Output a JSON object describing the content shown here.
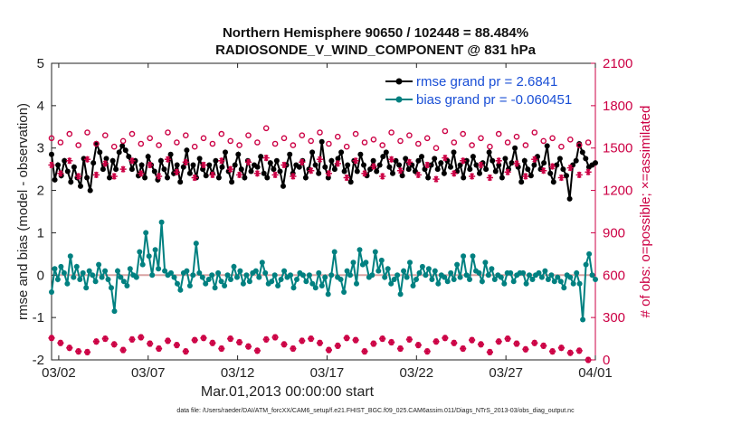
{
  "chart_data": {
    "type": "line",
    "title": "Northern Hemisphere 90650 / 102448 = 88.484%",
    "subtitle": "RADIOSONDE_V_WIND_COMPONENT @ 831 hPa",
    "xlabel": "Mar.01,2013 00:00:00 start",
    "ylabel": "rmse and bias (model - observation)",
    "y2label": "# of obs: o=possible; ×=assimilated",
    "x_ticks": [
      "03/02",
      "03/07",
      "03/12",
      "03/17",
      "03/22",
      "03/27",
      "04/01"
    ],
    "x_tick_days": [
      1,
      6,
      11,
      16,
      21,
      26,
      31
    ],
    "xlim": [
      0.6,
      31
    ],
    "ylim": [
      -2,
      5
    ],
    "y_ticks": [
      "-2",
      "-1",
      "0",
      "1",
      "2",
      "3",
      "4",
      "5"
    ],
    "y2lim": [
      0,
      2100
    ],
    "y2_ticks": [
      "0",
      "300",
      "600",
      "900",
      "1200",
      "1500",
      "1800",
      "2100"
    ],
    "zero_line": 0,
    "footer": "data file: /Users/raeder/DAI/ATM_forcXX/CAM6_setup/f.e21.FHIST_BGC.f09_025.CAM6assim.011/Diags_NTrS_2013-03/obs_diag_output.nc",
    "series": [
      {
        "name": "rmse grand pr = 2.6841",
        "color": "#000000",
        "axis": "left",
        "values": [
          2.85,
          2.25,
          2.6,
          2.35,
          2.7,
          2.45,
          2.2,
          2.55,
          2.3,
          2.1,
          2.75,
          2.3,
          2.0,
          2.65,
          3.1,
          2.9,
          2.5,
          2.75,
          2.3,
          2.7,
          2.5,
          2.9,
          3.05,
          2.95,
          2.8,
          2.5,
          2.7,
          2.35,
          2.6,
          2.3,
          2.8,
          2.6,
          2.45,
          2.25,
          2.7,
          2.5,
          2.3,
          2.85,
          2.4,
          2.6,
          2.2,
          2.55,
          2.95,
          2.4,
          2.6,
          2.3,
          2.75,
          2.5,
          2.35,
          2.6,
          2.4,
          2.7,
          2.3,
          2.55,
          2.9,
          2.45,
          2.2,
          2.6,
          2.85,
          2.5,
          2.3,
          2.7,
          2.45,
          2.6,
          2.55,
          2.8,
          2.4,
          2.3,
          2.65,
          2.5,
          2.7,
          2.45,
          2.1,
          2.6,
          2.85,
          2.4,
          2.6,
          2.55,
          2.7,
          2.3,
          2.5,
          2.9,
          2.6,
          2.4,
          3.15,
          2.55,
          2.3,
          2.7,
          2.5,
          2.75,
          2.9,
          2.45,
          2.6,
          2.2,
          2.7,
          2.45,
          2.85,
          2.6,
          2.35,
          2.5,
          2.7,
          2.45,
          2.6,
          2.8,
          2.9,
          2.55,
          2.4,
          2.7,
          2.6,
          2.35,
          2.75,
          2.5,
          2.6,
          2.45,
          2.7,
          2.8,
          2.5,
          2.3,
          2.6,
          2.75,
          2.5,
          2.65,
          2.4,
          2.7,
          2.55,
          2.9,
          2.45,
          2.6,
          2.3,
          2.7,
          2.5,
          2.8,
          2.6,
          2.4,
          2.65,
          2.5,
          2.9,
          2.7,
          2.45,
          2.6,
          2.3,
          2.75,
          2.5,
          2.65,
          3.0,
          2.55,
          2.2,
          2.7,
          2.5,
          2.35,
          2.6,
          2.8,
          2.5,
          2.65,
          3.05,
          2.4,
          2.2,
          2.6,
          2.75,
          2.5,
          2.35,
          1.8,
          2.6,
          2.7,
          3.1,
          2.9,
          2.75,
          2.55,
          2.6,
          2.65
        ]
      },
      {
        "name": "bias grand pr = -0.060451",
        "color": "#008080",
        "axis": "left",
        "values": [
          -0.4,
          0.15,
          -0.1,
          0.2,
          0.05,
          -0.2,
          0.45,
          -0.05,
          0.2,
          -0.1,
          0.05,
          -0.3,
          0.1,
          0.0,
          -0.15,
          0.25,
          -0.05,
          0.1,
          -0.1,
          -0.3,
          -0.85,
          0.1,
          -0.05,
          -0.15,
          -0.25,
          0.15,
          0.0,
          -0.05,
          0.55,
          0.25,
          1.0,
          0.45,
          0.0,
          0.6,
          0.15,
          1.25,
          0.1,
          0.0,
          0.05,
          -0.05,
          -0.2,
          -0.35,
          0.05,
          0.1,
          -0.25,
          0.0,
          0.75,
          0.05,
          -0.05,
          -0.2,
          -0.1,
          0.0,
          -0.3,
          0.05,
          -0.15,
          -0.25,
          0.0,
          -0.1,
          0.2,
          -0.05,
          0.1,
          -0.2,
          0.0,
          -0.15,
          0.05,
          0.1,
          -0.05,
          0.3,
          0.05,
          -0.2,
          -0.15,
          0.0,
          -0.25,
          -0.1,
          0.1,
          -0.05,
          0.0,
          -0.3,
          -0.1,
          0.05,
          0.0,
          -0.15,
          0.0,
          -0.2,
          -0.3,
          0.05,
          -0.25,
          -0.05,
          -0.45,
          0.0,
          0.55,
          -0.05,
          -0.1,
          -0.4,
          0.1,
          0.0,
          0.3,
          -0.2,
          0.6,
          0.25,
          0.3,
          -0.05,
          0.0,
          0.55,
          0.1,
          0.35,
          -0.05,
          0.15,
          -0.2,
          -0.1,
          0.0,
          -0.45,
          0.1,
          -0.05,
          0.3,
          -0.25,
          -0.1,
          0.05,
          0.2,
          0.0,
          0.15,
          -0.1,
          0.1,
          -0.2,
          0.0,
          -0.05,
          -0.15,
          0.05,
          -0.1,
          0.25,
          -0.05,
          0.45,
          0.0,
          -0.1,
          0.45,
          0.1,
          0.05,
          -0.15,
          0.3,
          0.0,
          0.15,
          -0.1,
          0.0,
          -0.05,
          -0.2,
          0.05,
          0.05,
          -0.15,
          0.0,
          0.05,
          0.05,
          -0.2,
          0.0,
          -0.1,
          0.0,
          0.05,
          -0.05,
          0.1,
          -0.1,
          0.0,
          -0.15,
          -0.05,
          -0.15,
          -0.3,
          0.0,
          -0.05,
          -0.2,
          0.05,
          -0.2,
          -1.05,
          0.25,
          0.5,
          0.0,
          -0.1
        ]
      },
      {
        "name": "possible",
        "color": "#cc0044",
        "axis": "right",
        "marker": "o",
        "times": [
          0.6,
          1.1,
          1.6,
          2.1,
          2.6,
          3.1,
          3.6,
          4.1,
          4.6,
          5.1,
          5.6,
          6.1,
          6.6,
          7.1,
          7.6,
          8.1,
          8.6,
          9.1,
          9.6,
          10.1,
          10.6,
          11.1,
          11.6,
          12.1,
          12.6,
          13.1,
          13.6,
          14.1,
          14.6,
          15.1,
          15.6,
          16.1,
          16.6,
          17.1,
          17.6,
          18.1,
          18.6,
          19.1,
          19.6,
          20.1,
          20.6,
          21.1,
          21.6,
          22.1,
          22.6,
          23.1,
          23.6,
          24.1,
          24.6,
          25.1,
          25.6,
          26.1,
          26.6,
          27.1,
          27.6,
          28.1,
          28.6,
          29.1,
          29.6,
          30.1,
          30.6
        ],
        "values": [
          1570,
          1540,
          1600,
          1520,
          1610,
          1530,
          1590,
          1510,
          1550,
          1600,
          1530,
          1570,
          1520,
          1610,
          1540,
          1590,
          1510,
          1570,
          1530,
          1600,
          1550,
          1520,
          1590,
          1540,
          1640,
          1530,
          1570,
          1520,
          1590,
          1550,
          1610,
          1530,
          1580,
          1510,
          1600,
          1540,
          1560,
          1520,
          1610,
          1550,
          1590,
          1530,
          1570,
          1500,
          1620,
          1540,
          1600,
          1520,
          1570,
          1510,
          1600,
          1540,
          1580,
          1520,
          1610,
          1550,
          1570,
          1510,
          1560,
          1520,
          1540
        ]
      },
      {
        "name": "assimilated",
        "color": "#cc0044",
        "axis": "right",
        "marker": "x",
        "times": [
          0.6,
          1.1,
          1.6,
          2.1,
          2.6,
          3.1,
          3.6,
          4.1,
          4.6,
          5.1,
          5.6,
          6.1,
          6.6,
          7.1,
          7.6,
          8.1,
          8.6,
          9.1,
          9.6,
          10.1,
          10.6,
          11.1,
          11.6,
          12.1,
          12.6,
          13.1,
          13.6,
          14.1,
          14.6,
          15.1,
          15.6,
          16.1,
          16.6,
          17.1,
          17.6,
          18.1,
          18.6,
          19.1,
          19.6,
          20.1,
          20.6,
          21.1,
          21.6,
          22.1,
          22.6,
          23.1,
          23.6,
          24.1,
          24.6,
          25.1,
          25.6,
          26.1,
          26.6,
          27.1,
          27.6,
          28.1,
          28.6,
          29.1,
          29.6,
          30.1,
          30.6
        ],
        "values": [
          1380,
          1320,
          1410,
          1300,
          1420,
          1310,
          1390,
          1300,
          1350,
          1410,
          1320,
          1380,
          1300,
          1420,
          1330,
          1400,
          1290,
          1380,
          1310,
          1410,
          1350,
          1310,
          1400,
          1320,
          1430,
          1310,
          1380,
          1300,
          1400,
          1340,
          1420,
          1320,
          1390,
          1290,
          1410,
          1320,
          1370,
          1300,
          1420,
          1340,
          1400,
          1310,
          1380,
          1280,
          1430,
          1320,
          1410,
          1300,
          1380,
          1290,
          1410,
          1330,
          1390,
          1300,
          1420,
          1340,
          1370,
          1290,
          1360,
          1310,
          1330
        ],
        "low_possible": [
          155,
          120,
          85,
          60,
          55,
          130,
          150,
          110,
          70,
          145,
          160,
          115,
          80,
          135,
          105,
          60,
          140,
          155,
          120,
          80,
          150,
          125,
          95,
          65,
          145,
          160,
          110,
          80,
          135,
          150,
          120,
          70,
          100,
          155,
          140,
          60,
          115,
          150,
          125,
          80,
          145,
          105,
          60,
          130,
          155,
          120,
          80,
          140,
          110,
          55,
          130,
          150,
          115,
          75,
          120,
          100,
          60,
          85,
          50,
          65,
          0
        ]
      }
    ],
    "legend_position": "top-right"
  }
}
